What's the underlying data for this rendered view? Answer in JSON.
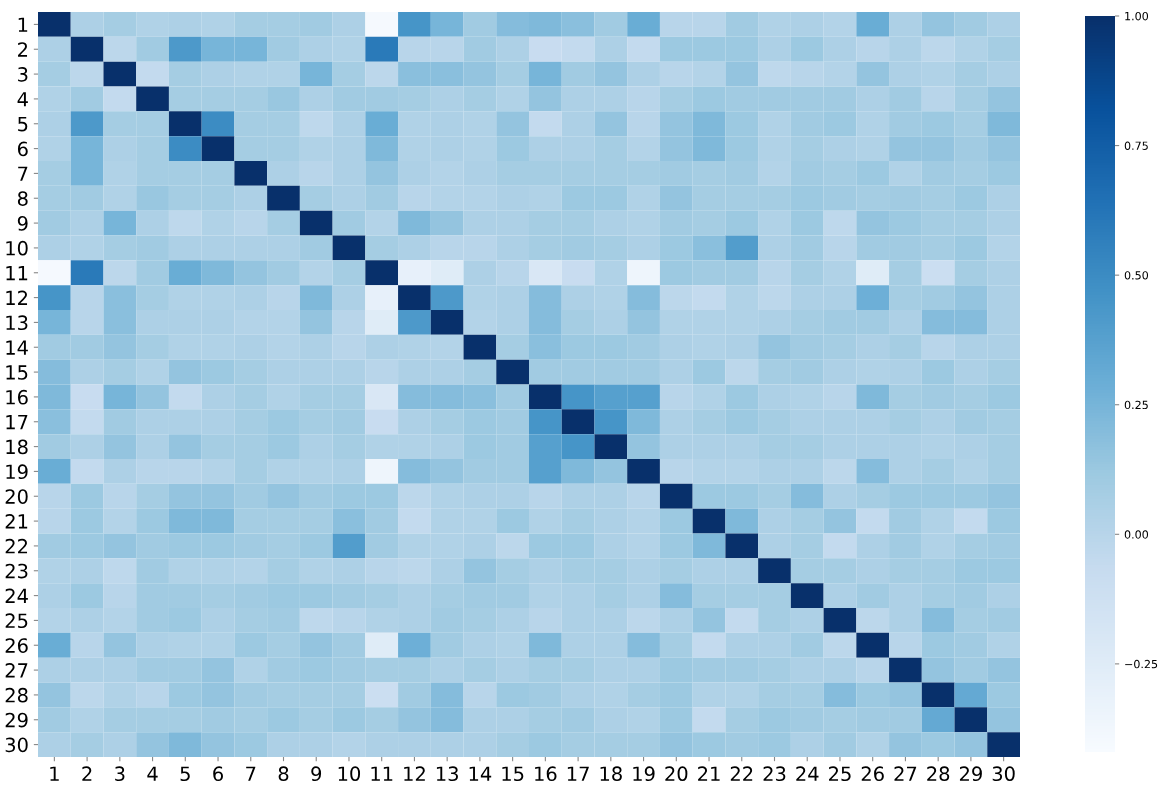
{
  "chart_data": {
    "type": "heatmap",
    "categories": [
      "1",
      "2",
      "3",
      "4",
      "5",
      "6",
      "7",
      "8",
      "9",
      "10",
      "11",
      "12",
      "13",
      "14",
      "15",
      "16",
      "17",
      "18",
      "19",
      "20",
      "21",
      "22",
      "23",
      "24",
      "25",
      "26",
      "27",
      "28",
      "29",
      "30"
    ],
    "y_categories": [
      "1",
      "2",
      "3",
      "4",
      "5",
      "6",
      "7",
      "8",
      "9",
      "10",
      "11",
      "12",
      "13",
      "14",
      "15",
      "16",
      "17",
      "18",
      "19",
      "20",
      "21",
      "22",
      "23",
      "24",
      "25",
      "26",
      "27",
      "28",
      "29",
      "30"
    ],
    "cells": [
      [
        1,
        0.05,
        0.08,
        0.03,
        0.05,
        0.03,
        0.08,
        0.08,
        0.1,
        0.05,
        -0.4,
        0.45,
        0.25,
        0.1,
        0.2,
        0.22,
        0.18,
        0.1,
        0.3,
        0.0,
        0.0,
        0.1,
        0.03,
        0.05,
        0.02,
        0.3,
        0.05,
        0.15,
        0.1,
        0.05
      ],
      [
        0.05,
        1,
        -0.02,
        0.1,
        0.42,
        0.25,
        0.25,
        0.1,
        0.05,
        0.03,
        0.6,
        0.0,
        0.0,
        0.1,
        0.05,
        -0.08,
        -0.05,
        0.05,
        -0.05,
        0.12,
        0.12,
        0.12,
        0.05,
        0.12,
        0.05,
        0.0,
        0.05,
        -0.02,
        0.03,
        0.08
      ],
      [
        0.08,
        -0.02,
        1,
        -0.05,
        0.08,
        0.05,
        0.03,
        0.03,
        0.25,
        0.08,
        -0.02,
        0.18,
        0.18,
        0.15,
        0.08,
        0.25,
        0.1,
        0.15,
        0.05,
        0.0,
        0.02,
        0.15,
        -0.03,
        0.0,
        0.02,
        0.15,
        0.05,
        0.03,
        0.08,
        0.05
      ],
      [
        0.03,
        0.1,
        -0.05,
        1,
        0.08,
        0.08,
        0.08,
        0.13,
        0.05,
        0.1,
        0.1,
        0.08,
        0.05,
        0.08,
        0.03,
        0.15,
        0.05,
        0.05,
        0.0,
        0.08,
        0.12,
        0.1,
        0.1,
        0.1,
        0.1,
        0.05,
        0.1,
        0.0,
        0.08,
        0.15
      ],
      [
        0.05,
        0.42,
        0.08,
        0.08,
        1,
        0.5,
        0.08,
        0.08,
        -0.03,
        0.05,
        0.3,
        0.03,
        0.05,
        0.03,
        0.15,
        -0.05,
        0.05,
        0.15,
        0.0,
        0.15,
        0.22,
        0.12,
        0.03,
        0.1,
        0.12,
        0.03,
        0.1,
        0.12,
        0.08,
        0.22
      ],
      [
        0.03,
        0.25,
        0.05,
        0.08,
        0.5,
        1,
        0.08,
        0.08,
        0.03,
        0.05,
        0.22,
        0.03,
        0.05,
        0.03,
        0.12,
        0.05,
        0.05,
        0.08,
        0.02,
        0.15,
        0.22,
        0.12,
        0.03,
        0.08,
        0.05,
        0.03,
        0.15,
        0.15,
        0.1,
        0.15
      ],
      [
        0.08,
        0.25,
        0.03,
        0.08,
        0.08,
        0.08,
        1,
        0.05,
        0.0,
        0.05,
        0.15,
        0.05,
        0.02,
        0.05,
        0.08,
        0.08,
        0.08,
        0.08,
        0.08,
        0.1,
        0.08,
        0.1,
        0.02,
        0.1,
        0.08,
        0.12,
        0.03,
        0.1,
        0.08,
        0.12
      ],
      [
        0.08,
        0.1,
        0.03,
        0.13,
        0.08,
        0.08,
        0.05,
        1,
        0.08,
        0.05,
        0.1,
        0.0,
        0.02,
        0.02,
        0.05,
        0.03,
        0.12,
        0.12,
        0.03,
        0.15,
        0.08,
        0.08,
        0.08,
        0.12,
        0.1,
        0.08,
        0.1,
        0.08,
        0.12,
        0.05
      ],
      [
        0.1,
        0.05,
        0.25,
        0.05,
        -0.03,
        0.03,
        0.0,
        0.08,
        1,
        0.1,
        0.02,
        0.22,
        0.15,
        0.05,
        0.05,
        0.08,
        0.08,
        0.05,
        0.03,
        0.1,
        0.08,
        0.12,
        0.03,
        0.12,
        -0.03,
        0.15,
        0.12,
        0.08,
        0.08,
        0.05
      ],
      [
        0.05,
        0.03,
        0.08,
        0.1,
        0.05,
        0.05,
        0.05,
        0.05,
        0.1,
        1,
        0.08,
        0.05,
        0.0,
        0.0,
        0.05,
        0.08,
        0.1,
        0.08,
        0.05,
        0.12,
        0.18,
        0.4,
        0.05,
        0.1,
        0.0,
        0.1,
        0.1,
        0.08,
        0.12,
        0.02
      ],
      [
        -0.4,
        0.6,
        -0.02,
        0.1,
        0.3,
        0.22,
        0.15,
        0.1,
        0.02,
        0.08,
        1,
        -0.3,
        -0.25,
        0.05,
        0.0,
        -0.2,
        -0.08,
        0.03,
        -0.35,
        0.12,
        0.1,
        0.1,
        0.0,
        0.08,
        0.03,
        -0.25,
        0.08,
        -0.1,
        0.08,
        0.05
      ],
      [
        0.45,
        0.0,
        0.18,
        0.08,
        0.03,
        0.03,
        0.05,
        0.0,
        0.22,
        0.05,
        -0.3,
        1,
        0.42,
        0.03,
        0.05,
        0.2,
        0.05,
        0.03,
        0.2,
        -0.02,
        -0.05,
        0.03,
        -0.02,
        0.05,
        0.05,
        0.28,
        0.08,
        0.1,
        0.15,
        0.05
      ],
      [
        0.25,
        0.0,
        0.18,
        0.05,
        0.05,
        0.05,
        0.02,
        0.02,
        0.15,
        0.0,
        -0.25,
        0.42,
        1,
        0.02,
        0.05,
        0.2,
        0.08,
        0.05,
        0.15,
        0.03,
        0.03,
        0.03,
        0.05,
        0.08,
        0.1,
        0.1,
        0.05,
        0.2,
        0.2,
        0.05
      ],
      [
        0.1,
        0.1,
        0.15,
        0.08,
        0.03,
        0.03,
        0.05,
        0.02,
        0.05,
        0.0,
        0.05,
        0.03,
        0.02,
        1,
        0.08,
        0.18,
        0.12,
        0.12,
        0.1,
        0.05,
        0.03,
        0.05,
        0.15,
        0.1,
        0.08,
        0.05,
        0.08,
        0.0,
        0.05,
        0.05
      ],
      [
        0.2,
        0.05,
        0.08,
        0.03,
        0.15,
        0.12,
        0.08,
        0.05,
        0.05,
        0.05,
        0.0,
        0.05,
        0.05,
        0.08,
        1,
        0.1,
        0.1,
        0.1,
        0.1,
        0.05,
        0.12,
        -0.02,
        0.08,
        0.1,
        0.05,
        0.03,
        0.05,
        0.12,
        0.05,
        0.08
      ],
      [
        0.22,
        -0.08,
        0.25,
        0.15,
        -0.05,
        0.05,
        0.08,
        0.03,
        0.08,
        0.08,
        -0.2,
        0.2,
        0.2,
        0.18,
        0.1,
        1,
        0.45,
        0.38,
        0.38,
        0.0,
        0.03,
        0.12,
        0.05,
        0.03,
        0.0,
        0.22,
        0.08,
        0.1,
        0.08,
        0.12
      ],
      [
        0.18,
        -0.05,
        0.1,
        0.05,
        0.05,
        0.05,
        0.08,
        0.12,
        0.08,
        0.1,
        -0.08,
        0.05,
        0.08,
        0.12,
        0.1,
        0.45,
        1,
        0.45,
        0.22,
        0.05,
        0.08,
        0.12,
        0.08,
        0.05,
        0.05,
        0.05,
        0.08,
        0.05,
        0.1,
        0.08
      ],
      [
        0.1,
        0.05,
        0.15,
        0.05,
        0.15,
        0.08,
        0.08,
        0.12,
        0.05,
        0.08,
        0.03,
        0.03,
        0.05,
        0.12,
        0.1,
        0.38,
        0.45,
        1,
        0.15,
        0.05,
        0.05,
        0.05,
        0.08,
        0.08,
        0.05,
        0.05,
        0.05,
        0.03,
        0.05,
        0.08
      ],
      [
        0.3,
        -0.05,
        0.05,
        0.0,
        0.0,
        0.02,
        0.08,
        0.03,
        0.03,
        0.05,
        -0.35,
        0.2,
        0.15,
        0.1,
        0.1,
        0.38,
        0.22,
        0.15,
        1,
        0.0,
        0.02,
        0.02,
        0.05,
        0.05,
        -0.02,
        0.2,
        0.05,
        0.08,
        0.03,
        0.08
      ],
      [
        0.0,
        0.12,
        0.0,
        0.08,
        0.15,
        0.15,
        0.1,
        0.15,
        0.1,
        0.12,
        0.12,
        -0.02,
        0.03,
        0.05,
        0.05,
        0.0,
        0.05,
        0.05,
        0.0,
        1,
        0.12,
        0.12,
        0.08,
        0.2,
        0.05,
        0.08,
        0.12,
        0.12,
        0.12,
        0.15
      ],
      [
        0.0,
        0.12,
        0.02,
        0.12,
        0.22,
        0.22,
        0.08,
        0.08,
        0.08,
        0.18,
        0.1,
        -0.05,
        0.03,
        0.03,
        0.12,
        0.03,
        0.08,
        0.05,
        0.02,
        0.12,
        1,
        0.22,
        0.05,
        0.08,
        0.15,
        -0.05,
        0.1,
        0.03,
        -0.05,
        0.12
      ],
      [
        0.1,
        0.12,
        0.15,
        0.1,
        0.12,
        0.12,
        0.1,
        0.08,
        0.12,
        0.4,
        0.1,
        0.03,
        0.03,
        0.05,
        -0.02,
        0.12,
        0.12,
        0.05,
        0.02,
        0.12,
        0.22,
        1,
        0.05,
        0.08,
        -0.05,
        0.05,
        0.1,
        0.03,
        0.08,
        0.1
      ],
      [
        0.03,
        0.05,
        -0.03,
        0.1,
        0.03,
        0.03,
        0.02,
        0.08,
        0.03,
        0.05,
        0.0,
        -0.02,
        0.05,
        0.15,
        0.08,
        0.05,
        0.08,
        0.08,
        0.05,
        0.08,
        0.05,
        0.05,
        1,
        0.08,
        0.08,
        0.05,
        0.08,
        0.08,
        0.12,
        0.12
      ],
      [
        0.05,
        0.12,
        0.0,
        0.1,
        0.1,
        0.08,
        0.1,
        0.12,
        0.12,
        0.1,
        0.08,
        0.05,
        0.08,
        0.1,
        0.1,
        0.03,
        0.05,
        0.08,
        0.05,
        0.2,
        0.08,
        0.08,
        0.08,
        1,
        0.05,
        0.1,
        0.05,
        0.08,
        0.1,
        0.05
      ],
      [
        0.02,
        0.05,
        0.02,
        0.1,
        0.12,
        0.05,
        0.08,
        0.1,
        -0.03,
        0.0,
        0.03,
        0.05,
        0.1,
        0.08,
        0.05,
        0.0,
        0.05,
        0.05,
        -0.02,
        0.05,
        0.15,
        -0.05,
        0.08,
        0.05,
        1,
        -0.02,
        0.05,
        0.2,
        0.08,
        0.1
      ],
      [
        0.3,
        0.0,
        0.15,
        0.05,
        0.03,
        0.03,
        0.12,
        0.08,
        0.15,
        0.1,
        -0.25,
        0.28,
        0.1,
        0.05,
        0.03,
        0.22,
        0.05,
        0.05,
        0.2,
        0.08,
        -0.05,
        0.05,
        0.05,
        0.1,
        -0.02,
        1,
        0.0,
        0.12,
        0.1,
        0.03
      ],
      [
        0.05,
        0.05,
        0.05,
        0.1,
        0.1,
        0.15,
        0.03,
        0.1,
        0.12,
        0.1,
        0.08,
        0.08,
        0.05,
        0.08,
        0.05,
        0.08,
        0.08,
        0.05,
        0.05,
        0.12,
        0.1,
        0.1,
        0.08,
        0.05,
        0.05,
        0.0,
        1,
        0.15,
        0.1,
        0.15
      ],
      [
        0.15,
        -0.02,
        0.03,
        0.0,
        0.12,
        0.15,
        0.1,
        0.08,
        0.08,
        0.08,
        -0.1,
        0.1,
        0.2,
        0.0,
        0.12,
        0.1,
        0.05,
        0.03,
        0.08,
        0.12,
        0.03,
        0.03,
        0.08,
        0.08,
        0.2,
        0.12,
        0.15,
        1,
        0.32,
        0.12
      ],
      [
        0.1,
        0.03,
        0.08,
        0.08,
        0.08,
        0.1,
        0.08,
        0.12,
        0.08,
        0.12,
        0.08,
        0.15,
        0.2,
        0.05,
        0.05,
        0.08,
        0.1,
        0.05,
        0.03,
        0.12,
        -0.05,
        0.08,
        0.12,
        0.1,
        0.08,
        0.1,
        0.1,
        0.32,
        1,
        0.15
      ],
      [
        0.05,
        0.08,
        0.05,
        0.15,
        0.22,
        0.15,
        0.12,
        0.05,
        0.05,
        0.02,
        0.05,
        0.05,
        0.05,
        0.05,
        0.08,
        0.12,
        0.08,
        0.08,
        0.08,
        0.15,
        0.12,
        0.1,
        0.12,
        0.05,
        0.1,
        0.03,
        0.15,
        0.12,
        0.15,
        1
      ]
    ],
    "clim": [
      -0.42,
      1.0
    ],
    "cticks": [
      {
        "value": 1.0,
        "label": "1.00"
      },
      {
        "value": 0.75,
        "label": "0.75"
      },
      {
        "value": 0.5,
        "label": "0.50"
      },
      {
        "value": 0.25,
        "label": "0.25"
      },
      {
        "value": 0.0,
        "label": "0.00"
      },
      {
        "value": -0.25,
        "label": "−0.25"
      }
    ]
  }
}
